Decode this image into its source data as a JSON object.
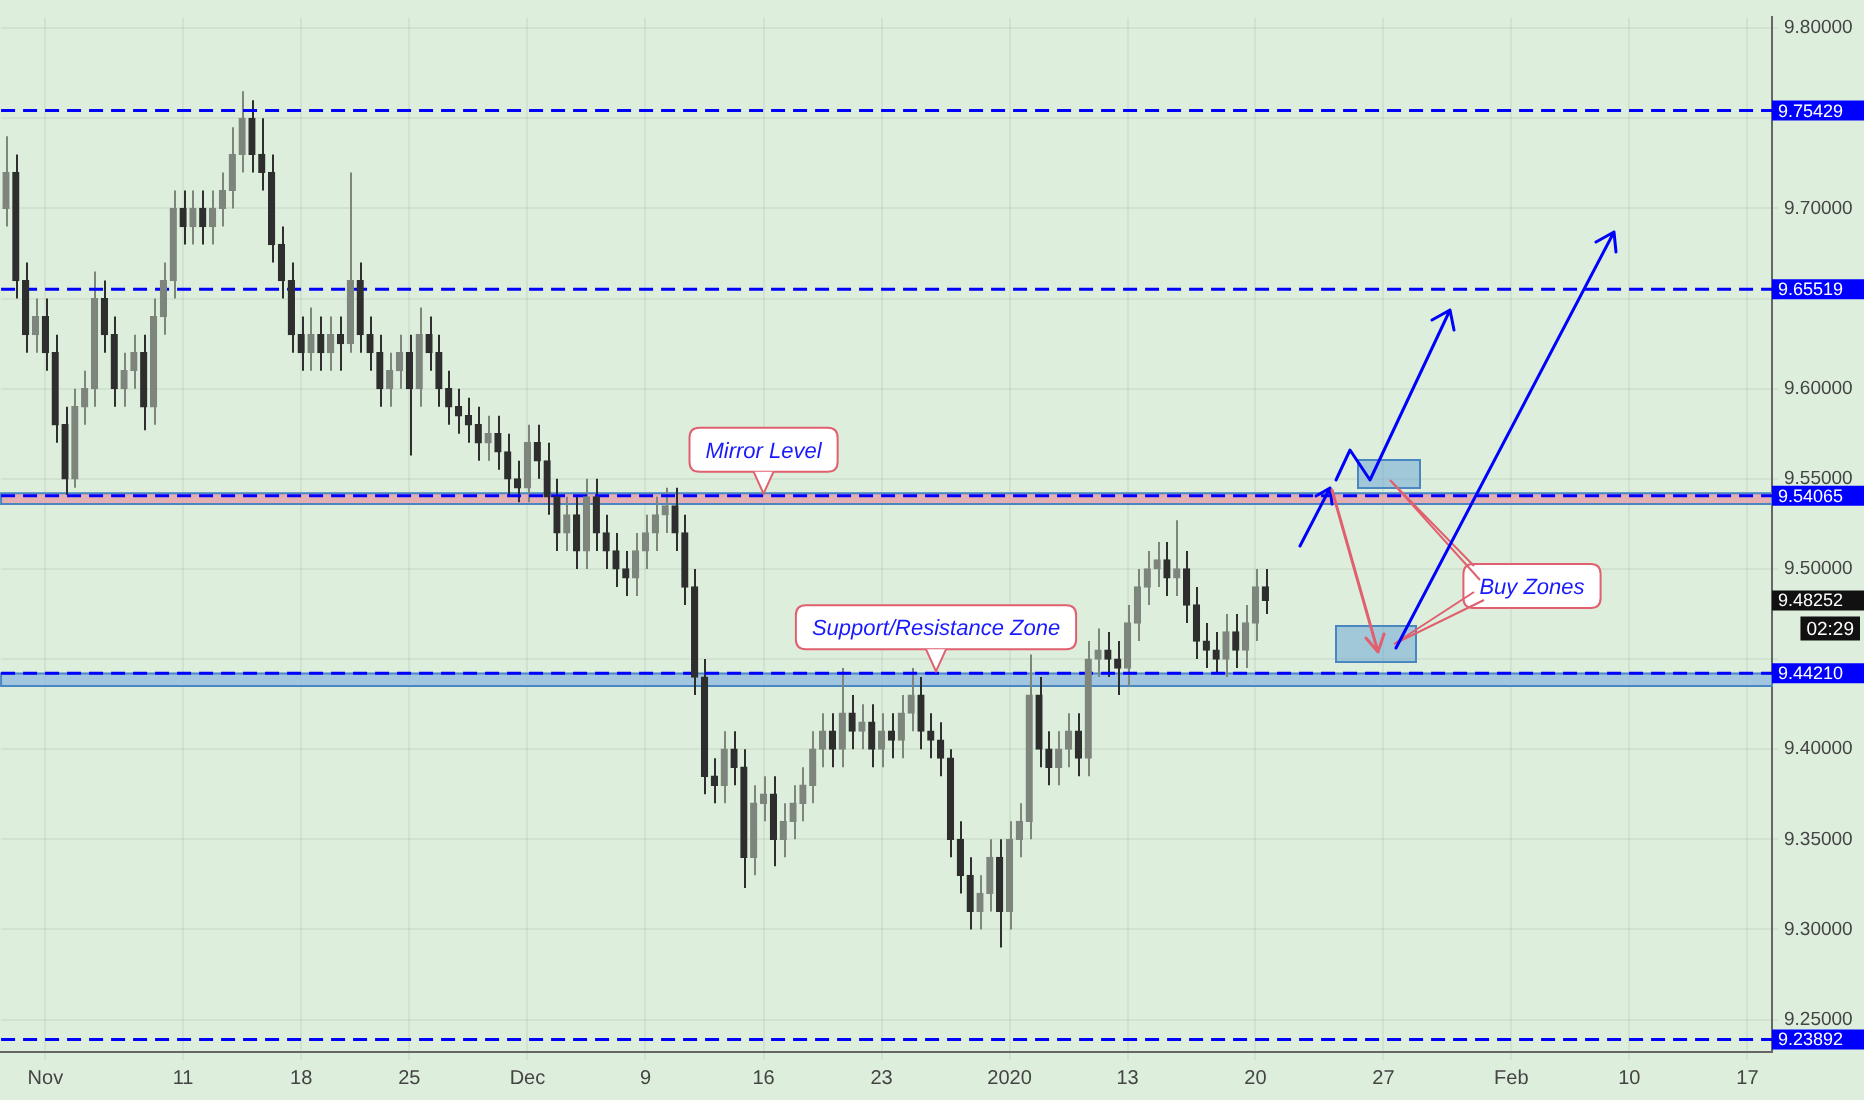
{
  "chart_data": {
    "type": "candlestick",
    "colors": [
      "#7d857d",
      "#2e2e2e",
      "#2e2e2e",
      "#7d857d",
      "#2e2e2e",
      "#2e2e2e",
      "#2e2e2e",
      "#7d857d",
      "#7d857d",
      "#7d857d",
      "#2e2e2e",
      "#2e2e2e",
      "#7d857d",
      "#7d857d",
      "#2e2e2e",
      "#7d857d",
      "#7d857d",
      "#7d857d",
      "#2e2e2e",
      "#7d857d",
      "#2e2e2e",
      "#7d857d",
      "#7d857d",
      "#7d857d",
      "#7d857d",
      "#2e2e2e",
      "#2e2e2e",
      "#2e2e2e",
      "#2e2e2e",
      "#2e2e2e",
      "#2e2e2e",
      "#7d857d",
      "#2e2e2e",
      "#7d857d",
      "#2e2e2e",
      "#7d857d",
      "#2e2e2e",
      "#2e2e2e",
      "#2e2e2e",
      "#7d857d",
      "#7d857d",
      "#2e2e2e",
      "#7d857d",
      "#2e2e2e",
      "#2e2e2e",
      "#2e2e2e",
      "#2e2e2e",
      "#2e2e2e",
      "#2e2e2e",
      "#7d857d",
      "#2e2e2e",
      "#2e2e2e",
      "#2e2e2e",
      "#7d857d",
      "#2e2e2e",
      "#2e2e2e",
      "#2e2e2e",
      "#7d857d",
      "#2e2e2e",
      "#7d857d",
      "#2e2e2e",
      "#2e2e2e",
      "#2e2e2e",
      "#2e2e2e",
      "#7d857d",
      "#7d857d",
      "#7d857d",
      "#7d857d",
      "#2e2e2e",
      "#2e2e2e",
      "#2e2e2e",
      "#2e2e2e",
      "#2e2e2e",
      "#7d857d",
      "#2e2e2e",
      "#2e2e2e",
      "#7d857d",
      "#7d857d",
      "#2e2e2e",
      "#7d857d",
      "#7d857d",
      "#7d857d",
      "#7d857d",
      "#7d857d",
      "#2e2e2e",
      "#7d857d",
      "#2e2e2e",
      "#7d857d",
      "#2e2e2e",
      "#7d857d",
      "#2e2e2e",
      "#7d857d",
      "#7d857d",
      "#2e2e2e",
      "#2e2e2e",
      "#2e2e2e",
      "#2e2e2e",
      "#2e2e2e",
      "#2e2e2e",
      "#7d857d",
      "#7d857d",
      "#2e2e2e",
      "#7d857d",
      "#7d857d",
      "#7d857d",
      "#2e2e2e",
      "#2e2e2e",
      "#7d857d",
      "#7d857d",
      "#2e2e2e",
      "#7d857d",
      "#7d857d",
      "#2e2e2e",
      "#2e2e2e",
      "#7d857d",
      "#7d857d",
      "#7d857d",
      "#7d857d",
      "#2e2e2e",
      "#7d857d",
      "#2e2e2e",
      "#2e2e2e",
      "#2e2e2e",
      "#2e2e2e",
      "#7d857d",
      "#2e2e2e",
      "#7d857d",
      "#7d857d",
      "#2e2e2e",
      null,
      null,
      null,
      null,
      null,
      null,
      null,
      null,
      null,
      null,
      null,
      null,
      null,
      null,
      null,
      null,
      null,
      null,
      null,
      null,
      null,
      null,
      null,
      null,
      null,
      null,
      null,
      null,
      null,
      null,
      null,
      null,
      null,
      null,
      null,
      null,
      null,
      null,
      null,
      null,
      null,
      null,
      null,
      null,
      null,
      null,
      null,
      null,
      null,
      null,
      null
    ],
    "categories": [
      null,
      null,
      null,
      null,
      "Nov",
      null,
      null,
      null,
      null,
      null,
      null,
      null,
      null,
      null,
      null,
      null,
      null,
      null,
      "11",
      null,
      null,
      null,
      null,
      null,
      null,
      null,
      null,
      null,
      null,
      null,
      "18",
      null,
      null,
      null,
      null,
      null,
      null,
      null,
      null,
      null,
      null,
      "25",
      null,
      null,
      null,
      null,
      null,
      null,
      null,
      null,
      null,
      null,
      null,
      "Dec",
      null,
      null,
      null,
      null,
      null,
      null,
      null,
      null,
      null,
      null,
      null,
      "9",
      null,
      null,
      null,
      null,
      null,
      null,
      null,
      null,
      null,
      null,
      null,
      "16",
      null,
      null,
      null,
      null,
      null,
      null,
      null,
      null,
      null,
      null,
      null,
      "23",
      null,
      null,
      null,
      null,
      null,
      null,
      null,
      null,
      null,
      null,
      null,
      null,
      "2020",
      null,
      null,
      null,
      null,
      null,
      null,
      null,
      null,
      null,
      null,
      null,
      "13",
      null,
      null,
      null,
      null,
      null,
      null,
      null,
      null,
      null,
      null,
      null,
      null,
      "20",
      null,
      null,
      null,
      null,
      null,
      null,
      null,
      null,
      null,
      null,
      null,
      null,
      "27",
      null,
      null,
      null,
      null,
      null,
      null,
      null,
      null,
      null,
      null,
      null,
      null,
      "Feb",
      null,
      null,
      null,
      null,
      null,
      null,
      null,
      null,
      null,
      null,
      null,
      "10",
      null,
      null,
      null,
      null,
      null,
      null,
      null,
      null,
      null,
      null,
      null,
      "17",
      null,
      null
    ],
    "ohlc": [
      [
        9.7,
        9.74,
        9.69,
        9.72
      ],
      [
        9.72,
        9.73,
        9.65,
        9.66
      ],
      [
        9.66,
        9.67,
        9.62,
        9.63
      ],
      [
        9.63,
        9.65,
        9.62,
        9.64
      ],
      [
        9.64,
        9.65,
        9.61,
        9.62
      ],
      [
        9.62,
        9.63,
        9.57,
        9.58
      ],
      [
        9.58,
        9.59,
        9.541,
        9.55
      ],
      [
        9.55,
        9.6,
        9.545,
        9.59
      ],
      [
        9.59,
        9.61,
        9.58,
        9.6
      ],
      [
        9.6,
        9.665,
        9.59,
        9.65
      ],
      [
        9.65,
        9.66,
        9.62,
        9.63
      ],
      [
        9.63,
        9.64,
        9.59,
        9.6
      ],
      [
        9.6,
        9.62,
        9.59,
        9.61
      ],
      [
        9.61,
        9.63,
        9.6,
        9.62
      ],
      [
        9.62,
        9.63,
        9.577,
        9.59
      ],
      [
        9.59,
        9.65,
        9.58,
        9.64
      ],
      [
        9.64,
        9.67,
        9.63,
        9.66
      ],
      [
        9.66,
        9.71,
        9.65,
        9.7
      ],
      [
        9.7,
        9.71,
        9.68,
        9.69
      ],
      [
        9.69,
        9.71,
        9.68,
        9.7
      ],
      [
        9.7,
        9.71,
        9.68,
        9.69
      ],
      [
        9.69,
        9.71,
        9.68,
        9.7
      ],
      [
        9.7,
        9.72,
        9.69,
        9.71
      ],
      [
        9.71,
        9.745,
        9.7,
        9.73
      ],
      [
        9.73,
        9.765,
        9.72,
        9.75
      ],
      [
        9.75,
        9.76,
        9.72,
        9.73
      ],
      [
        9.73,
        9.75,
        9.71,
        9.72
      ],
      [
        9.72,
        9.73,
        9.67,
        9.68
      ],
      [
        9.68,
        9.69,
        9.65,
        9.66
      ],
      [
        9.66,
        9.67,
        9.62,
        9.63
      ],
      [
        9.63,
        9.64,
        9.61,
        9.62
      ],
      [
        9.62,
        9.645,
        9.61,
        9.63
      ],
      [
        9.63,
        9.64,
        9.61,
        9.62
      ],
      [
        9.62,
        9.64,
        9.61,
        9.63
      ],
      [
        9.63,
        9.64,
        9.61,
        9.625
      ],
      [
        9.625,
        9.72,
        9.62,
        9.66
      ],
      [
        9.66,
        9.67,
        9.62,
        9.63
      ],
      [
        9.63,
        9.64,
        9.61,
        9.62
      ],
      [
        9.62,
        9.63,
        9.59,
        9.6
      ],
      [
        9.6,
        9.62,
        9.59,
        9.61
      ],
      [
        9.61,
        9.63,
        9.6,
        9.62
      ],
      [
        9.62,
        9.63,
        9.563,
        9.6
      ],
      [
        9.6,
        9.645,
        9.59,
        9.63
      ],
      [
        9.63,
        9.64,
        9.61,
        9.62
      ],
      [
        9.62,
        9.63,
        9.59,
        9.6
      ],
      [
        9.6,
        9.61,
        9.58,
        9.59
      ],
      [
        9.59,
        9.6,
        9.575,
        9.585
      ],
      [
        9.585,
        9.595,
        9.57,
        9.58
      ],
      [
        9.58,
        9.59,
        9.56,
        9.57
      ],
      [
        9.57,
        9.585,
        9.56,
        9.575
      ],
      [
        9.575,
        9.585,
        9.555,
        9.565
      ],
      [
        9.565,
        9.575,
        9.54,
        9.55
      ],
      [
        9.55,
        9.56,
        9.537,
        9.545
      ],
      [
        9.545,
        9.58,
        9.537,
        9.57
      ],
      [
        9.57,
        9.58,
        9.55,
        9.56
      ],
      [
        9.56,
        9.57,
        9.53,
        9.54
      ],
      [
        9.54,
        9.55,
        9.51,
        9.52
      ],
      [
        9.52,
        9.54,
        9.51,
        9.53
      ],
      [
        9.53,
        9.54,
        9.5,
        9.51
      ],
      [
        9.51,
        9.55,
        9.5,
        9.54
      ],
      [
        9.54,
        9.55,
        9.51,
        9.52
      ],
      [
        9.52,
        9.53,
        9.5,
        9.51
      ],
      [
        9.51,
        9.52,
        9.49,
        9.5
      ],
      [
        9.5,
        9.51,
        9.485,
        9.495
      ],
      [
        9.495,
        9.52,
        9.485,
        9.51
      ],
      [
        9.51,
        9.53,
        9.5,
        9.52
      ],
      [
        9.52,
        9.54,
        9.51,
        9.53
      ],
      [
        9.53,
        9.545,
        9.52,
        9.535
      ],
      [
        9.535,
        9.545,
        9.51,
        9.52
      ],
      [
        9.52,
        9.53,
        9.48,
        9.49
      ],
      [
        9.49,
        9.5,
        9.43,
        9.44
      ],
      [
        9.44,
        9.45,
        9.375,
        9.385
      ],
      [
        9.385,
        9.395,
        9.37,
        9.38
      ],
      [
        9.38,
        9.41,
        9.37,
        9.4
      ],
      [
        9.4,
        9.41,
        9.38,
        9.39
      ],
      [
        9.39,
        9.4,
        9.323,
        9.34
      ],
      [
        9.34,
        9.38,
        9.33,
        9.37
      ],
      [
        9.37,
        9.385,
        9.36,
        9.375
      ],
      [
        9.375,
        9.385,
        9.335,
        9.35
      ],
      [
        9.35,
        9.37,
        9.34,
        9.36
      ],
      [
        9.36,
        9.38,
        9.35,
        9.37
      ],
      [
        9.37,
        9.39,
        9.36,
        9.38
      ],
      [
        9.38,
        9.41,
        9.37,
        9.4
      ],
      [
        9.4,
        9.42,
        9.39,
        9.41
      ],
      [
        9.41,
        9.42,
        9.39,
        9.4
      ],
      [
        9.4,
        9.445,
        9.39,
        9.42
      ],
      [
        9.42,
        9.43,
        9.4,
        9.41
      ],
      [
        9.41,
        9.425,
        9.4,
        9.415
      ],
      [
        9.415,
        9.425,
        9.39,
        9.4
      ],
      [
        9.4,
        9.42,
        9.39,
        9.41
      ],
      [
        9.41,
        9.42,
        9.395,
        9.405
      ],
      [
        9.405,
        9.43,
        9.395,
        9.42
      ],
      [
        9.42,
        9.445,
        9.41,
        9.43
      ],
      [
        9.43,
        9.44,
        9.4,
        9.41
      ],
      [
        9.41,
        9.42,
        9.395,
        9.405
      ],
      [
        9.405,
        9.415,
        9.385,
        9.395
      ],
      [
        9.395,
        9.4,
        9.34,
        9.35
      ],
      [
        9.35,
        9.36,
        9.32,
        9.33
      ],
      [
        9.33,
        9.34,
        9.3,
        9.31
      ],
      [
        9.31,
        9.33,
        9.3,
        9.32
      ],
      [
        9.32,
        9.35,
        9.31,
        9.34
      ],
      [
        9.34,
        9.35,
        9.29,
        9.31
      ],
      [
        9.31,
        9.36,
        9.3,
        9.35
      ],
      [
        9.35,
        9.37,
        9.34,
        9.36
      ],
      [
        9.36,
        9.4525,
        9.35,
        9.43
      ],
      [
        9.43,
        9.44,
        9.39,
        9.4
      ],
      [
        9.4,
        9.41,
        9.38,
        9.39
      ],
      [
        9.39,
        9.41,
        9.38,
        9.4
      ],
      [
        9.4,
        9.42,
        9.39,
        9.41
      ],
      [
        9.41,
        9.42,
        9.385,
        9.395
      ],
      [
        9.395,
        9.46,
        9.385,
        9.45
      ],
      [
        9.45,
        9.467,
        9.44,
        9.455
      ],
      [
        9.455,
        9.465,
        9.44,
        9.45
      ],
      [
        9.45,
        9.46,
        9.43,
        9.445
      ],
      [
        9.445,
        9.48,
        9.435,
        9.47
      ],
      [
        9.47,
        9.5,
        9.46,
        9.49
      ],
      [
        9.49,
        9.51,
        9.48,
        9.5
      ],
      [
        9.5,
        9.515,
        9.49,
        9.505
      ],
      [
        9.505,
        9.515,
        9.485,
        9.495
      ],
      [
        9.495,
        9.527,
        9.485,
        9.5
      ],
      [
        9.5,
        9.51,
        9.47,
        9.48
      ],
      [
        9.48,
        9.49,
        9.45,
        9.46
      ],
      [
        9.46,
        9.47,
        9.445,
        9.455
      ],
      [
        9.455,
        9.465,
        9.442,
        9.45
      ],
      [
        9.45,
        9.475,
        9.44,
        9.465
      ],
      [
        9.465,
        9.475,
        9.445,
        9.455
      ],
      [
        9.455,
        9.48,
        9.445,
        9.47
      ],
      [
        9.47,
        9.5,
        9.46,
        9.49
      ],
      [
        9.49,
        9.5,
        9.475,
        9.48252
      ],
      null,
      null,
      null,
      null,
      null,
      null,
      null,
      null,
      null,
      null,
      null,
      null,
      null,
      null,
      null,
      null,
      null,
      null,
      null,
      null,
      null,
      null,
      null,
      null,
      null,
      null,
      null,
      null,
      null,
      null,
      null,
      null,
      null,
      null,
      null,
      null,
      null,
      null,
      null,
      null,
      null,
      null,
      null,
      null,
      null,
      null,
      null,
      null,
      null,
      null,
      null
    ],
    "ylim": [
      9.232,
      9.806
    ],
    "yticks": [
      {
        "value": 9.25,
        "label": "9.25000"
      },
      {
        "value": 9.3,
        "label": "9.30000"
      },
      {
        "value": 9.35,
        "label": "9.35000"
      },
      {
        "value": 9.4,
        "label": "9.40000"
      },
      {
        "value": 9.45,
        "label": null
      },
      {
        "value": 9.5,
        "label": "9.50000"
      },
      {
        "value": 9.55,
        "label": "9.55000"
      },
      {
        "value": 9.6,
        "label": "9.60000"
      },
      {
        "value": 9.65,
        "label": null
      },
      {
        "value": 9.7,
        "label": "9.70000"
      },
      {
        "value": 9.75,
        "label": null
      },
      {
        "value": 9.8,
        "label": "9.80000"
      }
    ],
    "grid": true,
    "legend": false,
    "ref_lines": [
      {
        "axis": "y",
        "value": 9.75429,
        "label": "9.75429",
        "color": "#0000ff",
        "line_style": "dashed"
      },
      {
        "axis": "y",
        "value": 9.65519,
        "label": "9.65519",
        "color": "#0000ff",
        "line_style": "dashed"
      },
      {
        "axis": "y",
        "value": 9.54065,
        "label": "9.54065",
        "color": "#0000ff",
        "line_style": "dashed"
      },
      {
        "axis": "y",
        "value": 9.4421,
        "label": "9.44210",
        "color": "#0000ff",
        "line_style": "dashed"
      },
      {
        "axis": "y",
        "value": 9.23892,
        "label": "9.23892",
        "color": "#0000ff",
        "line_style": "dashed"
      }
    ],
    "bands": [
      {
        "axis": "y",
        "from": 9.536,
        "to": 9.542,
        "color": "#e59aa6"
      },
      {
        "axis": "y",
        "from": 9.435,
        "to": 9.442,
        "color": "#8fb8e2"
      }
    ],
    "annotations": [
      {
        "text": "Mirror Level",
        "x": "16",
        "y": 9.54065
      },
      {
        "text": "Support/Resistance Zone",
        "y": 9.4421
      },
      "Buy Zones",
      "9.48252",
      "02:29"
    ]
  }
}
